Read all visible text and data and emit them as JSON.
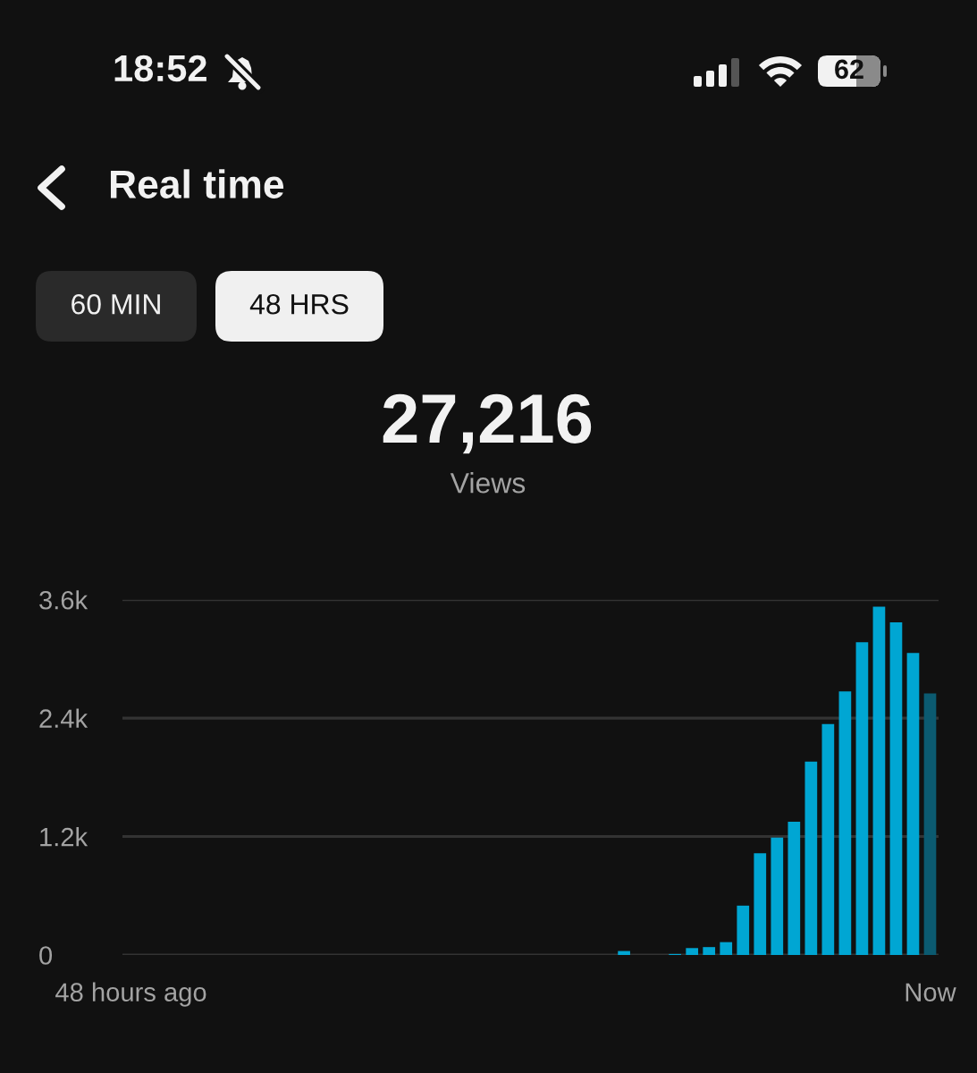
{
  "chart_data": {
    "type": "bar",
    "title": "Real time",
    "annotations": [
      "18:52",
      "62",
      "60 MIN",
      "48 HRS",
      "27,216",
      "Views"
    ],
    "categories": [
      "48 hours ago",
      null,
      null,
      null,
      null,
      null,
      null,
      null,
      null,
      null,
      null,
      null,
      null,
      null,
      null,
      null,
      null,
      null,
      null,
      null,
      null,
      null,
      null,
      null,
      null,
      null,
      null,
      null,
      null,
      null,
      null,
      null,
      null,
      null,
      null,
      null,
      null,
      null,
      null,
      null,
      null,
      null,
      null,
      null,
      null,
      null,
      null,
      "Now"
    ],
    "values": [
      0,
      0,
      0,
      0,
      0,
      0,
      0,
      0,
      0,
      0,
      0,
      0,
      0,
      0,
      0,
      0,
      0,
      0,
      0,
      0,
      0,
      0,
      0,
      0,
      0,
      0,
      0,
      0,
      0,
      40,
      0,
      0,
      10,
      70,
      80,
      130,
      500,
      1030,
      1190,
      1350,
      1960,
      2340,
      2670,
      3170,
      3530,
      3370,
      3060,
      2650
    ],
    "colors": [
      "#00a6d3",
      "#00a6d3",
      "#00a6d3",
      "#00a6d3",
      "#00a6d3",
      "#00a6d3",
      "#00a6d3",
      "#00a6d3",
      "#00a6d3",
      "#00a6d3",
      "#00a6d3",
      "#00a6d3",
      "#00a6d3",
      "#00a6d3",
      "#00a6d3",
      "#00a6d3",
      "#00a6d3",
      "#00a6d3",
      "#00a6d3",
      "#00a6d3",
      "#00a6d3",
      "#00a6d3",
      "#00a6d3",
      "#00a6d3",
      "#00a6d3",
      "#00a6d3",
      "#00a6d3",
      "#00a6d3",
      "#00a6d3",
      "#00a6d3",
      "#00a6d3",
      "#00a6d3",
      "#00a6d3",
      "#00a6d3",
      "#00a6d3",
      "#00a6d3",
      "#00a6d3",
      "#00a6d3",
      "#00a6d3",
      "#00a6d3",
      "#00a6d3",
      "#00a6d3",
      "#00a6d3",
      "#00a6d3",
      "#00a6d3",
      "#00a6d3",
      "#00a6d3",
      "#0b5a70"
    ],
    "ylim": [
      0,
      3600
    ],
    "yticks": [
      0,
      {
        "value": 1200,
        "label": "1.2k"
      },
      {
        "value": 2400,
        "label": "2.4k"
      },
      {
        "value": 3600,
        "label": "3.6k"
      }
    ],
    "grid": "y"
  }
}
